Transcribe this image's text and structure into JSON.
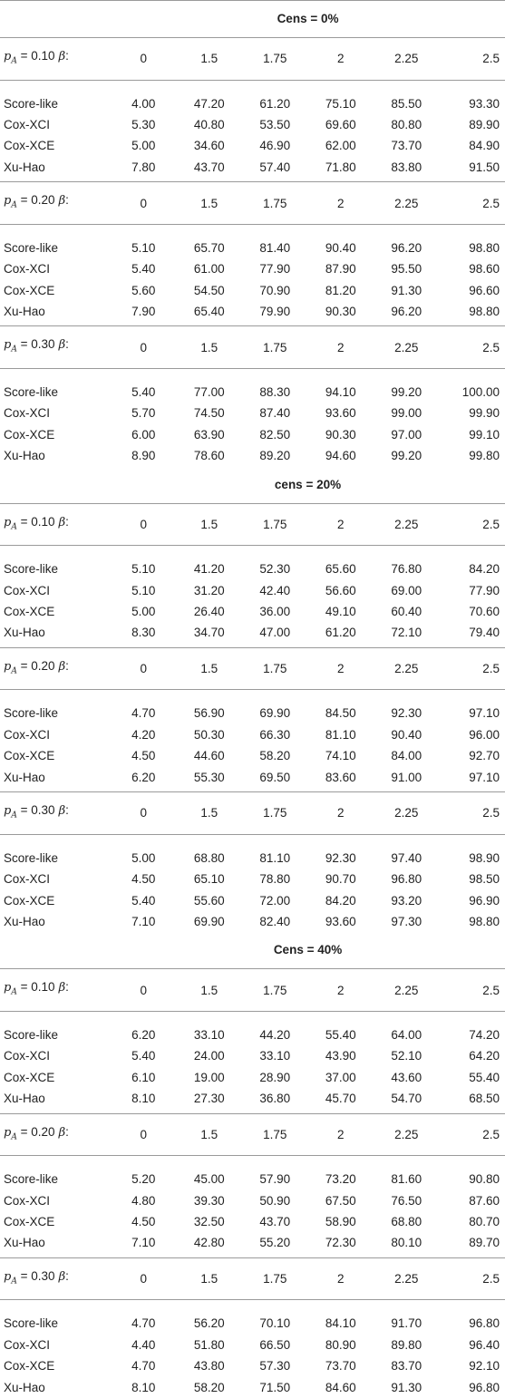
{
  "columns": [
    "0",
    "1.5",
    "1.75",
    "2",
    "2.25",
    "2.5"
  ],
  "sections": [
    {
      "title": "Cens = 0%",
      "groups": [
        {
          "pa": "0.10",
          "rows": [
            {
              "method": "Score-like",
              "values": [
                "4.00",
                "47.20",
                "61.20",
                "75.10",
                "85.50",
                "93.30"
              ]
            },
            {
              "method": "Cox-XCI",
              "values": [
                "5.30",
                "40.80",
                "53.50",
                "69.60",
                "80.80",
                "89.90"
              ]
            },
            {
              "method": "Cox-XCE",
              "values": [
                "5.00",
                "34.60",
                "46.90",
                "62.00",
                "73.70",
                "84.90"
              ]
            },
            {
              "method": "Xu-Hao",
              "values": [
                "7.80",
                "43.70",
                "57.40",
                "71.80",
                "83.80",
                "91.50"
              ]
            }
          ]
        },
        {
          "pa": "0.20",
          "rows": [
            {
              "method": "Score-like",
              "values": [
                "5.10",
                "65.70",
                "81.40",
                "90.40",
                "96.20",
                "98.80"
              ]
            },
            {
              "method": "Cox-XCI",
              "values": [
                "5.40",
                "61.00",
                "77.90",
                "87.90",
                "95.50",
                "98.60"
              ]
            },
            {
              "method": "Cox-XCE",
              "values": [
                "5.60",
                "54.50",
                "70.90",
                "81.20",
                "91.30",
                "96.60"
              ]
            },
            {
              "method": "Xu-Hao",
              "values": [
                "7.90",
                "65.40",
                "79.90",
                "90.30",
                "96.20",
                "98.80"
              ]
            }
          ]
        },
        {
          "pa": "0.30",
          "rows": [
            {
              "method": "Score-like",
              "values": [
                "5.40",
                "77.00",
                "88.30",
                "94.10",
                "99.20",
                "100.00"
              ]
            },
            {
              "method": "Cox-XCI",
              "values": [
                "5.70",
                "74.50",
                "87.40",
                "93.60",
                "99.00",
                "99.90"
              ]
            },
            {
              "method": "Cox-XCE",
              "values": [
                "6.00",
                "63.90",
                "82.50",
                "90.30",
                "97.00",
                "99.10"
              ]
            },
            {
              "method": "Xu-Hao",
              "values": [
                "8.90",
                "78.60",
                "89.20",
                "94.60",
                "99.20",
                "99.80"
              ]
            }
          ]
        }
      ]
    },
    {
      "title": "cens = 20%",
      "groups": [
        {
          "pa": "0.10",
          "rows": [
            {
              "method": "Score-like",
              "values": [
                "5.10",
                "41.20",
                "52.30",
                "65.60",
                "76.80",
                "84.20"
              ]
            },
            {
              "method": "Cox-XCI",
              "values": [
                "5.10",
                "31.20",
                "42.40",
                "56.60",
                "69.00",
                "77.90"
              ]
            },
            {
              "method": "Cox-XCE",
              "values": [
                "5.00",
                "26.40",
                "36.00",
                "49.10",
                "60.40",
                "70.60"
              ]
            },
            {
              "method": "Xu-Hao",
              "values": [
                "8.30",
                "34.70",
                "47.00",
                "61.20",
                "72.10",
                "79.40"
              ]
            }
          ]
        },
        {
          "pa": "0.20",
          "rows": [
            {
              "method": "Score-like",
              "values": [
                "4.70",
                "56.90",
                "69.90",
                "84.50",
                "92.30",
                "97.10"
              ]
            },
            {
              "method": "Cox-XCI",
              "values": [
                "4.20",
                "50.30",
                "66.30",
                "81.10",
                "90.40",
                "96.00"
              ]
            },
            {
              "method": "Cox-XCE",
              "values": [
                "4.50",
                "44.60",
                "58.20",
                "74.10",
                "84.00",
                "92.70"
              ]
            },
            {
              "method": "Xu-Hao",
              "values": [
                "6.20",
                "55.30",
                "69.50",
                "83.60",
                "91.00",
                "97.10"
              ]
            }
          ]
        },
        {
          "pa": "0.30",
          "rows": [
            {
              "method": "Score-like",
              "values": [
                "5.00",
                "68.80",
                "81.10",
                "92.30",
                "97.40",
                "98.90"
              ]
            },
            {
              "method": "Cox-XCI",
              "values": [
                "4.50",
                "65.10",
                "78.80",
                "90.70",
                "96.80",
                "98.50"
              ]
            },
            {
              "method": "Cox-XCE",
              "values": [
                "5.40",
                "55.60",
                "72.00",
                "84.20",
                "93.20",
                "96.90"
              ]
            },
            {
              "method": "Xu-Hao",
              "values": [
                "7.10",
                "69.90",
                "82.40",
                "93.60",
                "97.30",
                "98.80"
              ]
            }
          ]
        }
      ]
    },
    {
      "title": "Cens = 40%",
      "groups": [
        {
          "pa": "0.10",
          "rows": [
            {
              "method": "Score-like",
              "values": [
                "6.20",
                "33.10",
                "44.20",
                "55.40",
                "64.00",
                "74.20"
              ]
            },
            {
              "method": "Cox-XCI",
              "values": [
                "5.40",
                "24.00",
                "33.10",
                "43.90",
                "52.10",
                "64.20"
              ]
            },
            {
              "method": "Cox-XCE",
              "values": [
                "6.10",
                "19.00",
                "28.90",
                "37.00",
                "43.60",
                "55.40"
              ]
            },
            {
              "method": "Xu-Hao",
              "values": [
                "8.10",
                "27.30",
                "36.80",
                "45.70",
                "54.70",
                "68.50"
              ]
            }
          ]
        },
        {
          "pa": "0.20",
          "rows": [
            {
              "method": "Score-like",
              "values": [
                "5.20",
                "45.00",
                "57.90",
                "73.20",
                "81.60",
                "90.80"
              ]
            },
            {
              "method": "Cox-XCI",
              "values": [
                "4.80",
                "39.30",
                "50.90",
                "67.50",
                "76.50",
                "87.60"
              ]
            },
            {
              "method": "Cox-XCE",
              "values": [
                "4.50",
                "32.50",
                "43.70",
                "58.90",
                "68.80",
                "80.70"
              ]
            },
            {
              "method": "Xu-Hao",
              "values": [
                "7.10",
                "42.80",
                "55.20",
                "72.30",
                "80.10",
                "89.70"
              ]
            }
          ]
        },
        {
          "pa": "0.30",
          "rows": [
            {
              "method": "Score-like",
              "values": [
                "4.70",
                "56.20",
                "70.10",
                "84.10",
                "91.70",
                "96.80"
              ]
            },
            {
              "method": "Cox-XCI",
              "values": [
                "4.40",
                "51.80",
                "66.50",
                "80.90",
                "89.80",
                "96.40"
              ]
            },
            {
              "method": "Cox-XCE",
              "values": [
                "4.70",
                "43.80",
                "57.30",
                "73.70",
                "83.70",
                "92.10"
              ]
            },
            {
              "method": "Xu-Hao",
              "values": [
                "8.10",
                "58.20",
                "71.50",
                "84.60",
                "91.30",
                "96.80"
              ]
            }
          ]
        }
      ]
    }
  ]
}
